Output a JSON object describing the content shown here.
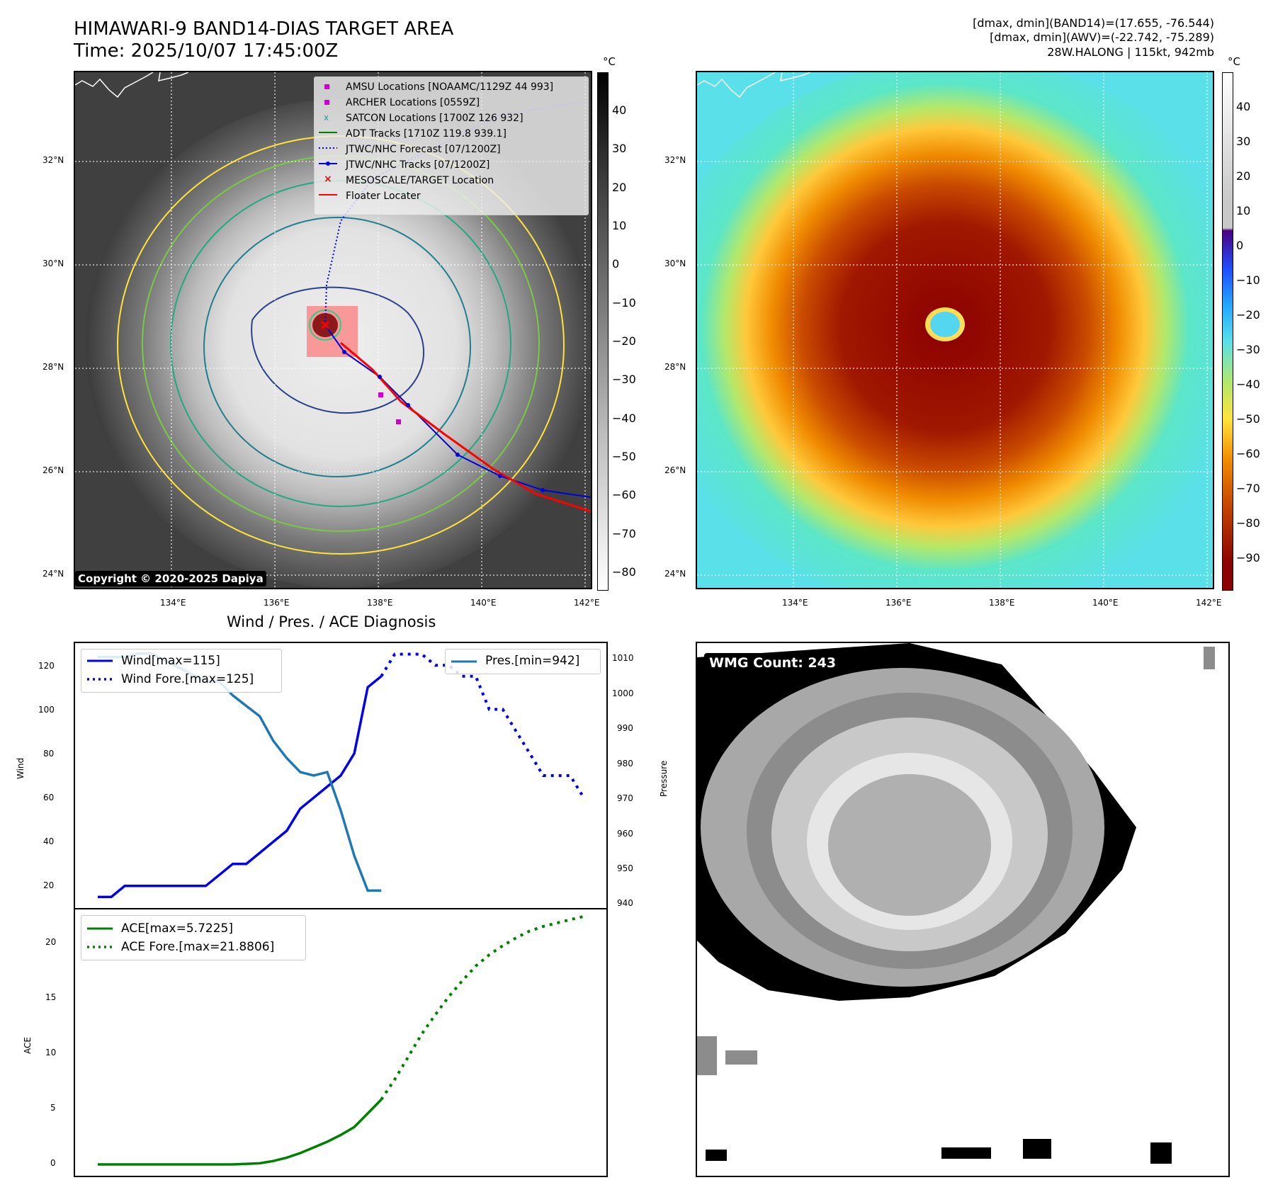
{
  "header": {
    "title_line1": "HIMAWARI-9 BAND14-DIAS TARGET AREA",
    "title_line2": "Time: 2025/10/07 17:45:00Z",
    "info_line1": "[dmax, dmin](BAND14)=(17.655, -76.544)",
    "info_line2": "[dmax, dmin](AWV)=(-22.742, -75.289)",
    "info_line3": "28W.HALONG | 115kt, 942mb"
  },
  "map_axes": {
    "lat_labels": [
      "32°N",
      "30°N",
      "28°N",
      "26°N",
      "24°N"
    ],
    "lon_labels": [
      "134°E",
      "136°E",
      "138°E",
      "140°E",
      "142°E"
    ]
  },
  "map_left": {
    "legend": [
      "AMSU Locations [NOAAMC/1129Z 44 993]",
      "ARCHER Locations [0559Z]",
      "SATCON Locations [1700Z 126 932]",
      "ADT Tracks [1710Z 119.8 939.1]",
      "JTWC/NHC Forecast [07/1200Z]",
      "JTWC/NHC Tracks [07/1200Z]",
      "MESOSCALE/TARGET Location",
      "Floater Locater"
    ],
    "copyright": "Copyright © 2020-2025 Dapiya",
    "colorbar_unit": "°C",
    "colorbar_ticks": [
      "40",
      "30",
      "20",
      "10",
      "0",
      "−10",
      "−20",
      "−30",
      "−40",
      "−50",
      "−60",
      "−70",
      "−80"
    ]
  },
  "map_right": {
    "colorbar_unit": "°C",
    "colorbar_ticks": [
      "40",
      "30",
      "20",
      "10",
      "0",
      "−10",
      "−20",
      "−30",
      "−40",
      "−50",
      "−60",
      "−70",
      "−80",
      "−90"
    ]
  },
  "diagnosis": {
    "title": "Wind / Pres. / ACE Diagnosis",
    "wind_ylabel": "Wind",
    "pressure_ylabel": "Pressure",
    "ace_ylabel": "ACE",
    "wind_ticks": [
      "120",
      "100",
      "80",
      "60",
      "40",
      "20"
    ],
    "pressure_ticks": [
      "1010",
      "1000",
      "990",
      "980",
      "970",
      "960",
      "950",
      "940"
    ],
    "ace_ticks": [
      "20",
      "15",
      "10",
      "5",
      "0"
    ],
    "legend_wind": "Wind[max=115]",
    "legend_wind_fore": "Wind Fore.[max=125]",
    "legend_pres": "Pres.[min=942]",
    "legend_ace": "ACE[max=5.7225]",
    "legend_ace_fore": "ACE Fore.[max=21.8806]"
  },
  "wmg": {
    "label": "WMG Count: 243"
  },
  "chart_data": [
    {
      "type": "line",
      "title": "Wind / Pres. / ACE Diagnosis",
      "ylabel": "Wind",
      "ylim": [
        10,
        130
      ],
      "x": [
        0,
        1,
        2,
        3,
        4,
        5,
        6,
        7,
        8,
        9,
        10,
        11,
        12,
        13,
        14,
        15,
        16,
        17,
        18,
        19,
        20,
        21,
        22,
        23,
        24,
        25,
        26,
        27,
        28,
        29,
        30,
        31,
        32,
        33,
        34,
        35,
        36
      ],
      "series": [
        {
          "name": "Wind[max=115]",
          "color": "#0000ee",
          "style": "solid",
          "x": [
            0,
            1,
            2,
            3,
            4,
            5,
            6,
            7,
            8,
            9,
            10,
            11,
            12,
            13,
            14,
            15,
            16,
            17,
            18,
            19,
            20,
            21
          ],
          "values": [
            15,
            15,
            20,
            20,
            20,
            20,
            20,
            20,
            20,
            25,
            30,
            30,
            35,
            40,
            45,
            55,
            60,
            65,
            70,
            80,
            110,
            115
          ]
        },
        {
          "name": "Wind Fore.[max=125]",
          "color": "#0000ee",
          "style": "dotted",
          "x": [
            21,
            22,
            23,
            24,
            25,
            26,
            27,
            28,
            29,
            30,
            31,
            32,
            33,
            34,
            35,
            36
          ],
          "values": [
            115,
            125,
            125,
            125,
            120,
            120,
            115,
            115,
            100,
            100,
            90,
            80,
            70,
            70,
            70,
            60
          ]
        },
        {
          "name": "Pres.[min=942]",
          "color": "#1f77b4",
          "style": "solid",
          "axis": "right",
          "ylim": [
            937,
            1013
          ],
          "x": [
            0,
            1,
            2,
            3,
            4,
            5,
            6,
            7,
            8,
            9,
            10,
            11,
            12,
            13,
            14,
            15,
            16,
            17,
            18,
            19,
            20,
            21
          ],
          "values": [
            1009,
            1009,
            1009,
            1010,
            1010,
            1008,
            1006,
            1004,
            1002,
            1002,
            998,
            995,
            992,
            985,
            980,
            976,
            975,
            976,
            965,
            952,
            942,
            942
          ]
        }
      ]
    },
    {
      "type": "line",
      "ylabel": "ACE",
      "ylim": [
        -1,
        22.5
      ],
      "series": [
        {
          "name": "ACE[max=5.7225]",
          "color": "#008000",
          "style": "solid",
          "x": [
            0,
            2,
            4,
            6,
            8,
            10,
            12,
            13,
            14,
            15,
            16,
            17,
            18,
            19,
            20,
            21
          ],
          "values": [
            0,
            0,
            0,
            0,
            0,
            0,
            0.1,
            0.3,
            0.6,
            1.0,
            1.5,
            2.0,
            2.6,
            3.3,
            4.5,
            5.7225
          ]
        },
        {
          "name": "ACE Fore.[max=21.8806]",
          "color": "#008000",
          "style": "dotted",
          "x": [
            21,
            22,
            23,
            24,
            25,
            26,
            27,
            28,
            29,
            30,
            31,
            32,
            33,
            34,
            35,
            36
          ],
          "values": [
            5.7225,
            7.5,
            9.5,
            11.5,
            13.2,
            14.8,
            16.2,
            17.5,
            18.5,
            19.3,
            20.0,
            20.6,
            21.0,
            21.3,
            21.6,
            21.88
          ]
        }
      ]
    }
  ]
}
